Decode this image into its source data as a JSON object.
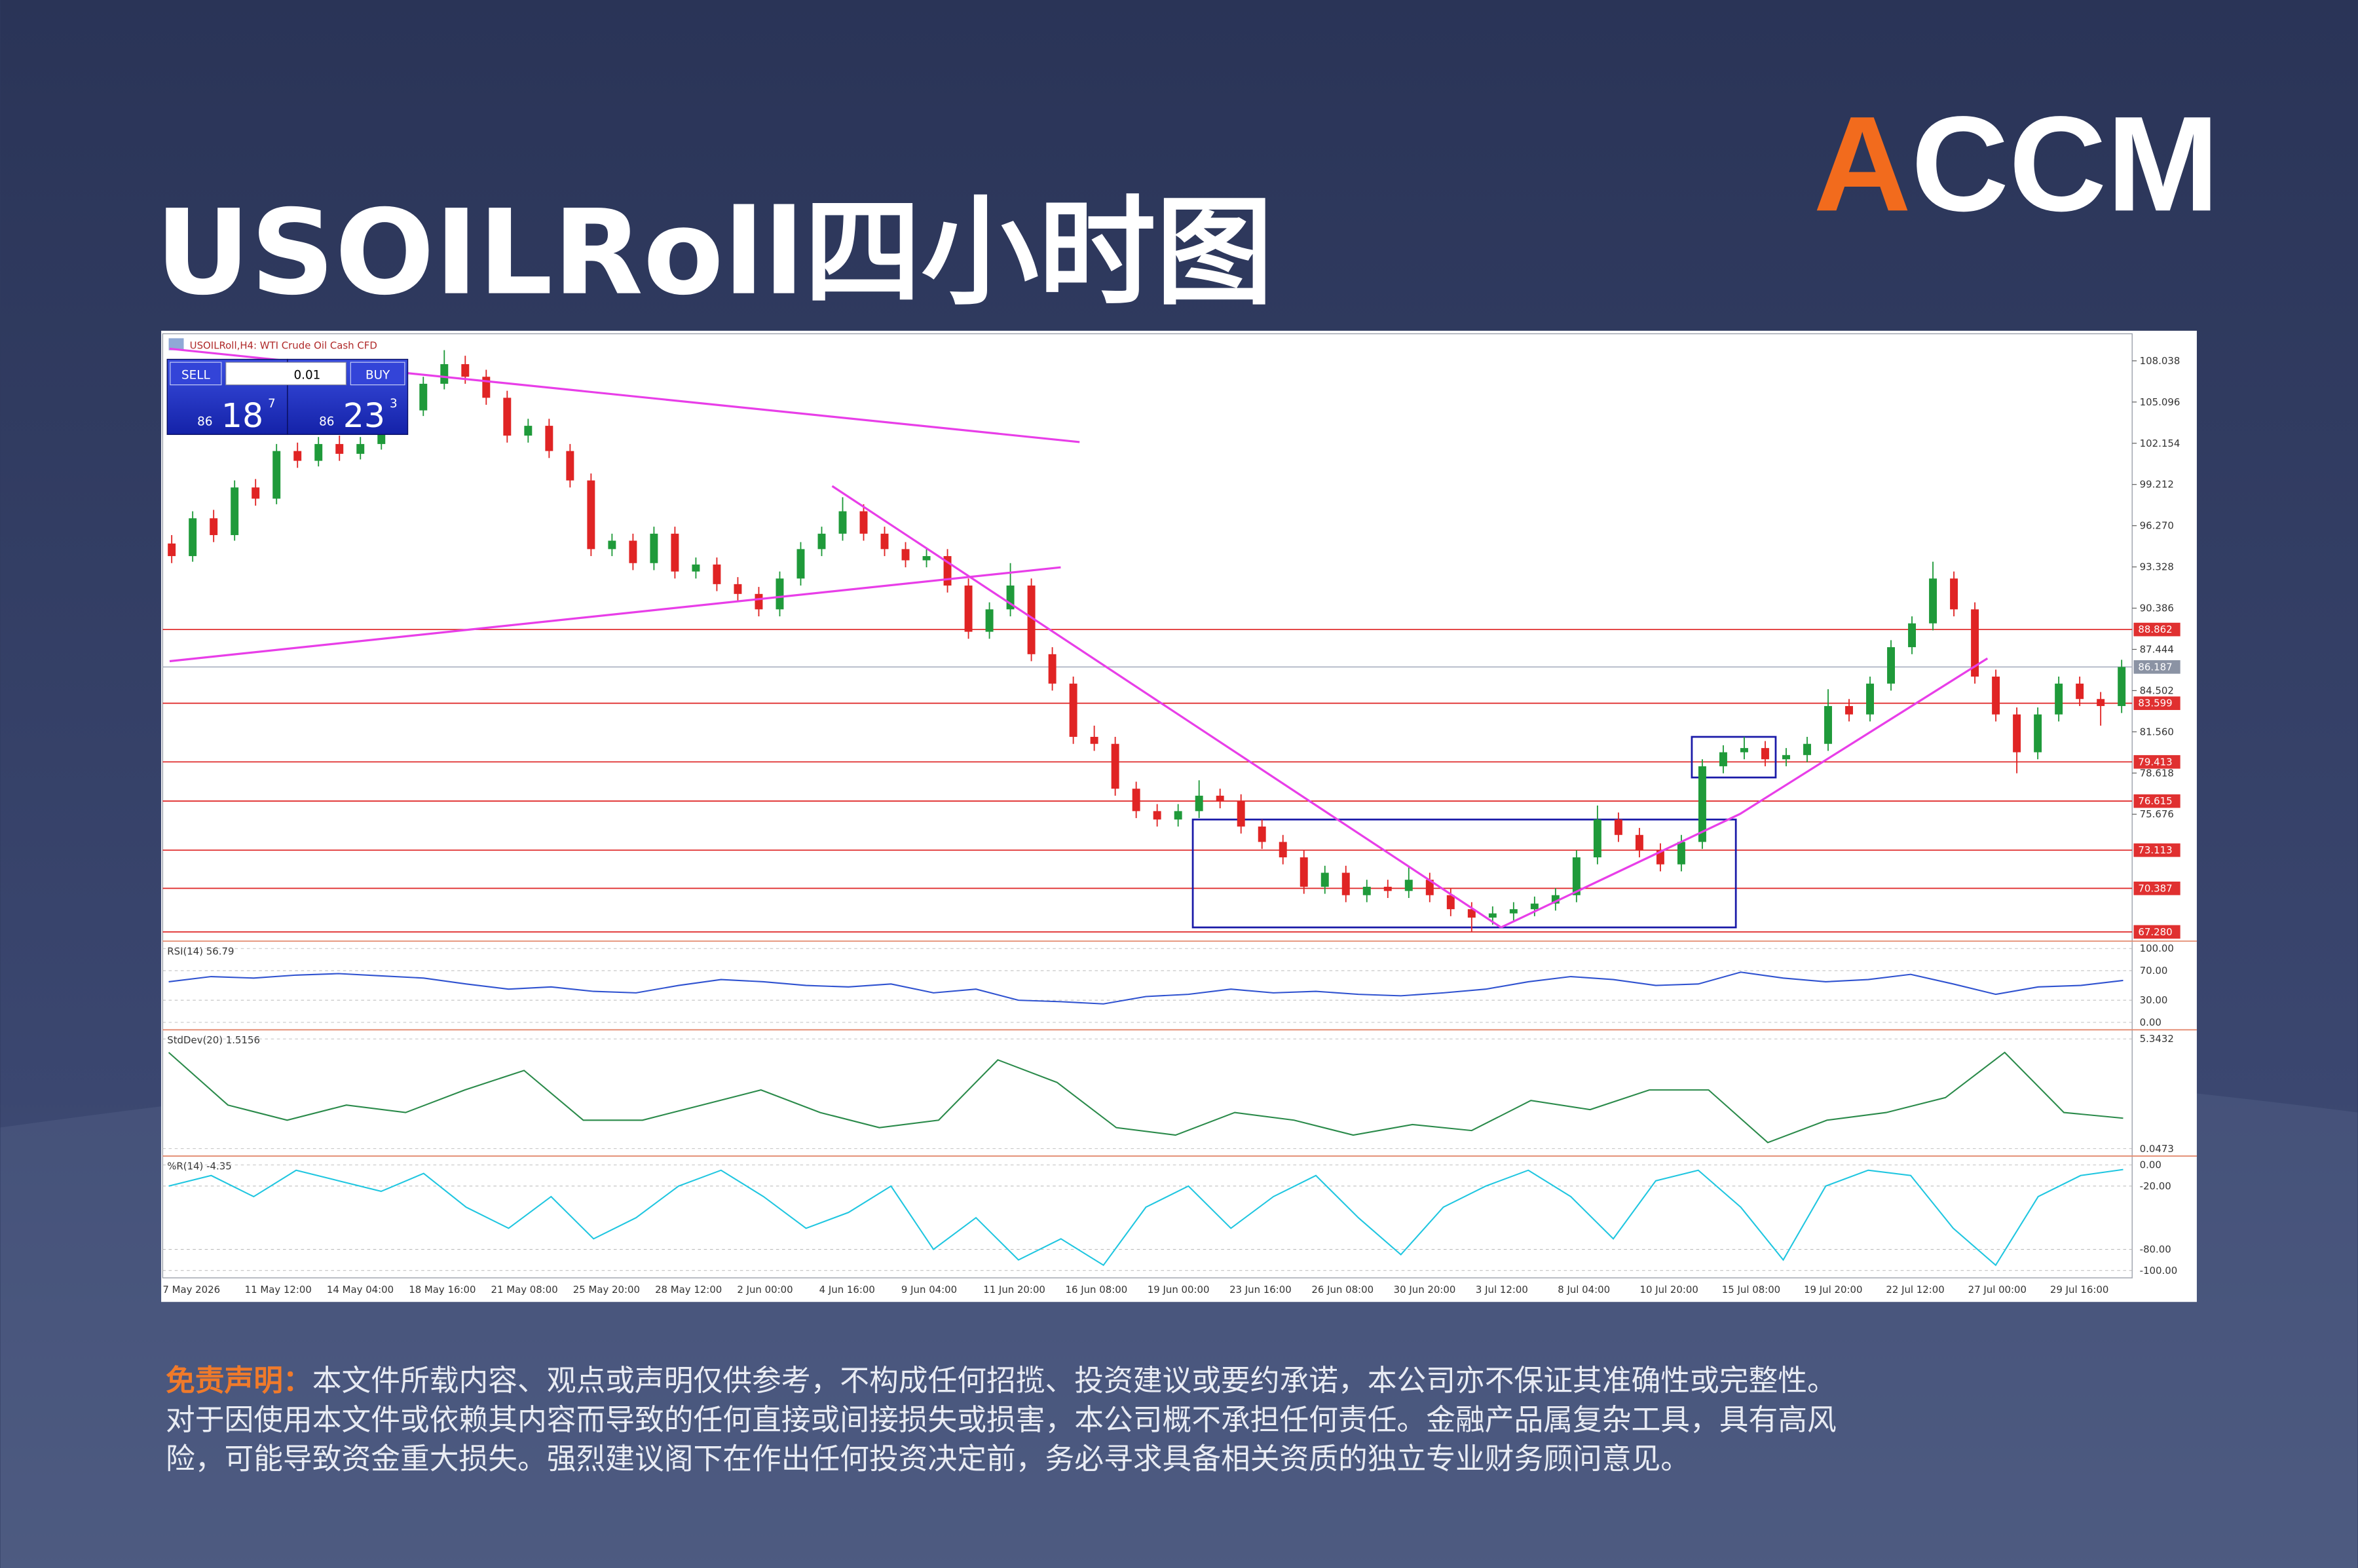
{
  "header": {
    "title": "USOILRoll四小时图",
    "logo": {
      "accent": "A",
      "rest": "CCM"
    }
  },
  "chart_data": {
    "type": "candlestick",
    "symbol": "USOILRoll,H4:  WTI Crude Oil Cash CFD",
    "trade_panel": {
      "sell": "SELL",
      "lot": "0.01",
      "buy": "BUY",
      "sell_prefix": "86",
      "sell_big": "18",
      "sell_sup": "7",
      "buy_prefix": "86",
      "buy_big": "23",
      "buy_sup": "3"
    },
    "x_labels": [
      "7 May 2026",
      "11 May 12:00",
      "14 May 04:00",
      "18 May 16:00",
      "21 May 08:00",
      "25 May 20:00",
      "28 May 12:00",
      "2 Jun 00:00",
      "4 Jun 16:00",
      "9 Jun 04:00",
      "11 Jun 20:00",
      "16 Jun 08:00",
      "19 Jun 00:00",
      "23 Jun 16:00",
      "26 Jun 08:00",
      "30 Jun 20:00",
      "3 Jul 12:00",
      "8 Jul 04:00",
      "10 Jul 20:00",
      "15 Jul 08:00",
      "19 Jul 20:00",
      "22 Jul 12:00",
      "27 Jul 00:00",
      "29 Jul 16:00"
    ],
    "ylim": [
      66.73,
      109.97
    ],
    "yticks": [
      108.038,
      105.096,
      102.154,
      99.212,
      {
        "value": 96.27,
        "label": "96.270"
      },
      93.328,
      90.386,
      87.444,
      84.502,
      {
        "value": 81.56,
        "label": "81.560"
      },
      78.618,
      75.676
    ],
    "up_color": "#1f9a3a",
    "down_color": "#e02424",
    "candles": [
      [
        95.0,
        95.6,
        93.6,
        94.1
      ],
      [
        94.1,
        97.3,
        93.7,
        96.8
      ],
      [
        96.8,
        97.4,
        95.1,
        95.6
      ],
      [
        95.6,
        99.5,
        95.2,
        99.0
      ],
      [
        99.0,
        99.6,
        97.7,
        98.2
      ],
      [
        98.2,
        102.1,
        97.8,
        101.6
      ],
      [
        101.6,
        102.2,
        100.4,
        100.9
      ],
      [
        100.9,
        102.6,
        100.5,
        102.1
      ],
      [
        102.1,
        102.7,
        100.9,
        101.4
      ],
      [
        101.4,
        102.6,
        101.0,
        102.1
      ],
      [
        102.1,
        104.2,
        101.7,
        103.7
      ],
      [
        103.7,
        105.0,
        103.2,
        104.5
      ],
      [
        104.5,
        106.9,
        104.1,
        106.4
      ],
      [
        106.4,
        108.8,
        106.0,
        107.8
      ],
      [
        107.8,
        108.4,
        106.4,
        106.9
      ],
      [
        106.9,
        107.4,
        104.9,
        105.4
      ],
      [
        105.4,
        105.9,
        102.2,
        102.7
      ],
      [
        102.7,
        103.9,
        102.2,
        103.4
      ],
      [
        103.4,
        103.9,
        101.1,
        101.6
      ],
      [
        101.6,
        102.1,
        99.0,
        99.5
      ],
      [
        99.5,
        100.0,
        94.1,
        94.6
      ],
      [
        94.6,
        95.7,
        94.1,
        95.2
      ],
      [
        95.2,
        95.7,
        93.1,
        93.6
      ],
      [
        93.6,
        96.2,
        93.1,
        95.7
      ],
      [
        95.7,
        96.2,
        92.5,
        93.0
      ],
      [
        93.0,
        94.0,
        92.5,
        93.5
      ],
      [
        93.5,
        94.0,
        91.6,
        92.1
      ],
      [
        92.1,
        92.6,
        90.9,
        91.4
      ],
      [
        91.4,
        91.9,
        89.8,
        90.3
      ],
      [
        90.3,
        93.0,
        89.8,
        92.5
      ],
      [
        92.5,
        95.1,
        92.0,
        94.6
      ],
      [
        94.6,
        96.2,
        94.1,
        95.7
      ],
      [
        95.7,
        98.3,
        95.2,
        97.3
      ],
      [
        97.3,
        97.8,
        95.2,
        95.7
      ],
      [
        95.7,
        96.2,
        94.1,
        94.6
      ],
      [
        94.6,
        95.1,
        93.3,
        93.8
      ],
      [
        93.8,
        94.6,
        93.3,
        94.1
      ],
      [
        94.1,
        94.6,
        91.5,
        92.0
      ],
      [
        92.0,
        92.5,
        88.2,
        88.7
      ],
      [
        88.7,
        90.8,
        88.2,
        90.3
      ],
      [
        90.3,
        93.6,
        89.8,
        92.0
      ],
      [
        92.0,
        92.5,
        86.6,
        87.1
      ],
      [
        87.1,
        87.6,
        84.5,
        85.0
      ],
      [
        85.0,
        85.5,
        80.7,
        81.2
      ],
      [
        81.2,
        82.0,
        80.2,
        80.7
      ],
      [
        80.7,
        81.2,
        77.0,
        77.5
      ],
      [
        77.5,
        78.0,
        75.4,
        75.9
      ],
      [
        75.9,
        76.4,
        74.8,
        75.3
      ],
      [
        75.3,
        76.4,
        74.8,
        75.9
      ],
      [
        75.9,
        78.1,
        75.4,
        77.0
      ],
      [
        77.0,
        77.5,
        76.1,
        76.6
      ],
      [
        76.6,
        77.1,
        74.3,
        74.8
      ],
      [
        74.8,
        75.3,
        73.2,
        73.7
      ],
      [
        73.7,
        74.2,
        72.1,
        72.6
      ],
      [
        72.6,
        73.1,
        70.0,
        70.5
      ],
      [
        70.5,
        72.0,
        70.0,
        71.5
      ],
      [
        71.5,
        72.0,
        69.4,
        69.9
      ],
      [
        69.9,
        71.0,
        69.4,
        70.5
      ],
      [
        70.5,
        71.0,
        69.7,
        70.2
      ],
      [
        70.2,
        71.9,
        69.7,
        71.0
      ],
      [
        71.0,
        71.5,
        69.4,
        69.9
      ],
      [
        69.9,
        70.4,
        68.4,
        68.9
      ],
      [
        68.9,
        69.4,
        67.3,
        68.3
      ],
      [
        68.3,
        69.1,
        67.8,
        68.6
      ],
      [
        68.6,
        69.4,
        68.1,
        68.9
      ],
      [
        68.9,
        69.8,
        68.4,
        69.3
      ],
      [
        69.3,
        70.4,
        68.8,
        69.9
      ],
      [
        69.9,
        73.1,
        69.4,
        72.6
      ],
      [
        72.6,
        76.3,
        72.1,
        75.3
      ],
      [
        75.3,
        75.8,
        73.7,
        74.2
      ],
      [
        74.2,
        74.7,
        72.6,
        73.1
      ],
      [
        73.1,
        73.6,
        71.6,
        72.1
      ],
      [
        72.1,
        74.2,
        71.6,
        73.7
      ],
      [
        73.7,
        79.6,
        73.2,
        79.1
      ],
      [
        79.1,
        80.6,
        78.6,
        80.1
      ],
      [
        80.1,
        81.2,
        79.6,
        80.4
      ],
      [
        80.4,
        80.9,
        79.1,
        79.6
      ],
      [
        79.6,
        80.4,
        79.1,
        79.9
      ],
      [
        79.9,
        81.2,
        79.4,
        80.7
      ],
      [
        80.7,
        84.6,
        80.2,
        83.4
      ],
      [
        83.4,
        83.9,
        82.3,
        82.8
      ],
      [
        82.8,
        85.5,
        82.3,
        85.0
      ],
      [
        85.0,
        88.1,
        84.5,
        87.6
      ],
      [
        87.6,
        89.8,
        87.1,
        89.3
      ],
      [
        89.3,
        93.7,
        88.8,
        92.5
      ],
      [
        92.5,
        93.0,
        89.8,
        90.3
      ],
      [
        90.3,
        90.8,
        85.0,
        85.5
      ],
      [
        85.5,
        86.0,
        82.3,
        82.8
      ],
      [
        82.8,
        83.3,
        78.6,
        80.1
      ],
      [
        80.1,
        83.3,
        79.6,
        82.8
      ],
      [
        82.8,
        85.5,
        82.3,
        85.0
      ],
      [
        85.0,
        85.5,
        83.4,
        83.9
      ],
      [
        83.9,
        84.4,
        82.0,
        83.4
      ],
      [
        83.4,
        86.7,
        82.9,
        86.187
      ]
    ],
    "levels": [
      88.862,
      83.599,
      79.413,
      76.615,
      73.113,
      70.387,
      {
        "value": 67.28,
        "label": "67.280"
      }
    ],
    "level_color": "#e03030",
    "price_line": 86.187,
    "trendline_color": "#e83ee8",
    "trendlines": [
      {
        "x": [
          -0.1,
          43.3
        ],
        "y": [
          108.9,
          102.24
        ]
      },
      {
        "x": [
          -0.1,
          42.4
        ],
        "y": [
          86.6,
          93.3
        ]
      },
      {
        "x": [
          31.5,
          63.4
        ],
        "y": [
          99.1,
          67.6
        ]
      },
      {
        "x": [
          63.4,
          74.8,
          86.6
        ],
        "y": [
          67.6,
          75.7,
          86.8
        ]
      }
    ],
    "box_color": "#1a1aa8",
    "boxes": [
      {
        "x": [
          48.7,
          74.6
        ],
        "y": [
          67.6,
          75.3
        ]
      },
      {
        "x": [
          72.5,
          76.5
        ],
        "y": [
          78.3,
          81.2
        ]
      }
    ],
    "indicators": [
      {
        "title": "RSI(14) 56.79",
        "color": "#2f52d0",
        "ylim": [
          -8,
          108
        ],
        "yticks": [
          {
            "value": 100,
            "label": "100.00"
          },
          {
            "value": 70,
            "label": "70.00"
          },
          {
            "value": 30,
            "label": "30.00"
          },
          {
            "value": 0,
            "label": "0.00"
          }
        ],
        "values": [
          55,
          62,
          60,
          64,
          66,
          63,
          60,
          52,
          45,
          48,
          42,
          40,
          50,
          58,
          55,
          50,
          48,
          52,
          40,
          45,
          30,
          28,
          25,
          35,
          38,
          45,
          40,
          42,
          38,
          36,
          40,
          45,
          55,
          62,
          58,
          50,
          52,
          68,
          60,
          55,
          58,
          65,
          52,
          38,
          48,
          50,
          56.79
        ]
      },
      {
        "title": "StdDev(20) 1.5156",
        "color": "#2a8a4a",
        "ylim": [
          -0.24,
          5.71
        ],
        "yticks": [
          5.3432,
          0.0473
        ],
        "values": [
          4.69,
          2.15,
          1.42,
          2.15,
          1.79,
          2.88,
          3.82,
          1.42,
          1.42,
          2.15,
          2.88,
          1.79,
          1.06,
          1.42,
          4.33,
          3.24,
          1.06,
          0.7,
          1.79,
          1.42,
          0.7,
          1.21,
          0.92,
          2.37,
          1.93,
          2.88,
          2.88,
          0.34,
          1.42,
          1.79,
          2.51,
          4.69,
          1.79,
          1.5156
        ]
      },
      {
        "title": "%R(14) -4.35",
        "color": "#1fc6e0",
        "ylim": [
          -107,
          7
        ],
        "yticks": [
          {
            "value": 0,
            "label": "0.00"
          },
          {
            "value": -20,
            "label": "-20.00"
          },
          {
            "value": -80,
            "label": "-80.00"
          },
          {
            "value": -100,
            "label": "-100.00"
          }
        ],
        "values": [
          -20,
          -10,
          -30,
          -5,
          -15,
          -25,
          -8,
          -40,
          -60,
          -30,
          -70,
          -50,
          -20,
          -5,
          -30,
          -60,
          -45,
          -20,
          -80,
          -50,
          -90,
          -70,
          -95,
          -40,
          -20,
          -60,
          -30,
          -10,
          -50,
          -85,
          -40,
          -20,
          -5,
          -30,
          -70,
          -15,
          -5,
          -40,
          -90,
          -20,
          -5,
          -10,
          -60,
          -95,
          -30,
          -10,
          -4.35
        ]
      }
    ]
  },
  "disclaimer": {
    "label": "免责声明：",
    "lines": [
      "本文件所载内容、观点或声明仅供参考，不构成任何招揽、投资建议或要约承诺，本公司亦不保证其准确性或完整性。",
      "对于因使用本文件或依赖其内容而导致的任何直接或间接损失或损害，本公司概不承担任何责任。金融产品属复杂工具，具有高风",
      "险，可能导致资金重大损失。强烈建议阁下在作出任何投资决定前，务必寻求具备相关资质的独立专业财务顾问意见。"
    ]
  }
}
